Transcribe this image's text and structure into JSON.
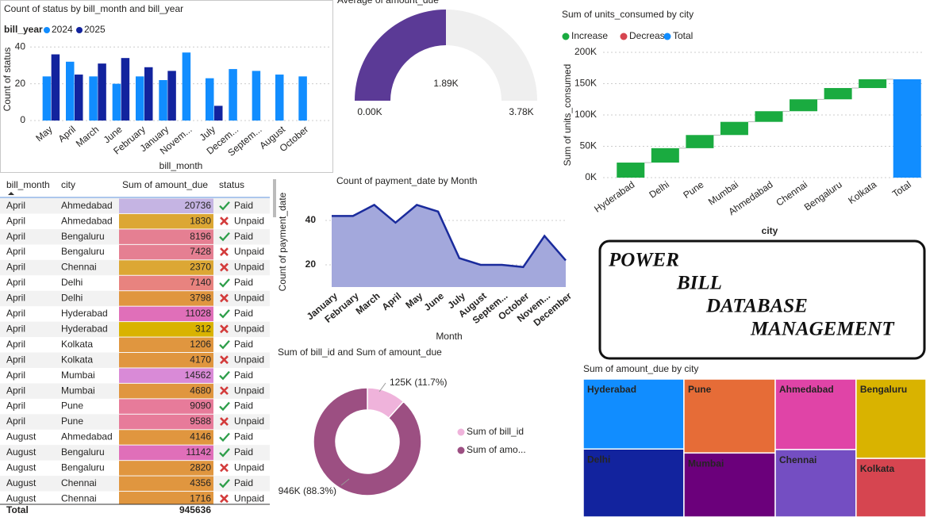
{
  "chart_data": [
    {
      "type": "bar",
      "title": "Count of status by bill_month and bill_year",
      "legend_title": "bill_year",
      "categories": [
        "May",
        "April",
        "March",
        "June",
        "February",
        "January",
        "Novem...",
        "July",
        "Decem...",
        "Septem...",
        "August",
        "October"
      ],
      "series": [
        {
          "name": "2024",
          "color": "#118dff",
          "values": [
            24,
            32,
            24,
            20,
            24,
            22,
            37,
            23,
            28,
            27,
            25,
            24
          ]
        },
        {
          "name": "2025",
          "color": "#12239e",
          "values": [
            36,
            25,
            31,
            34,
            29,
            27,
            null,
            8,
            null,
            null,
            null,
            null
          ]
        }
      ],
      "ylim": [
        0,
        44
      ],
      "yticks": [
        0,
        20,
        40
      ],
      "y_label": "Count of status",
      "x_label": "bill_month",
      "grid": true
    },
    {
      "type": "gauge",
      "title": "Average of amount_due",
      "values": [
        1890
      ],
      "value_labels": [
        "1.89K"
      ],
      "min": {
        "value": 0,
        "label": "0.00K"
      },
      "max": {
        "value": 3780,
        "label": "3.78K"
      },
      "color": "#5b3a96",
      "track_color": "#efefef"
    },
    {
      "type": "waterfall",
      "title": "Sum of units_consumed by city",
      "legend": [
        {
          "name": "Increase",
          "color": "#1aab40"
        },
        {
          "name": "Decrease",
          "color": "#d64550"
        },
        {
          "name": "Total",
          "color": "#118dff"
        }
      ],
      "categories": [
        "Hyderabad",
        "Delhi",
        "Pune",
        "Mumbai",
        "Ahmedabad",
        "Chennai",
        "Bengaluru",
        "Kolkata"
      ],
      "values": [
        24000,
        23000,
        21000,
        21000,
        17000,
        19000,
        18000,
        14000
      ],
      "total_label": "Total",
      "total": 157000,
      "ylim": [
        0,
        200000
      ],
      "yticks": [
        {
          "value": 0,
          "label": "0K"
        },
        {
          "value": 50000,
          "label": "50K"
        },
        {
          "value": 100000,
          "label": "100K"
        },
        {
          "value": 150000,
          "label": "150K"
        },
        {
          "value": 200000,
          "label": "200K"
        }
      ],
      "x_label": "city",
      "y_label": "Sum of units_consumed",
      "grid": true
    },
    {
      "type": "area",
      "title": "Count of payment_date by Month",
      "categories": [
        "January",
        "February",
        "March",
        "April",
        "May",
        "June",
        "July",
        "August",
        "Septem...",
        "October",
        "Novem...",
        "December"
      ],
      "values": [
        42,
        42,
        47,
        39,
        47,
        44,
        23,
        20,
        20,
        19,
        33,
        22
      ],
      "ylim": [
        10,
        50
      ],
      "yticks": [
        20,
        40
      ],
      "x_label": "Month",
      "y_label": "Count of payment_date",
      "color": "#a3a8dc",
      "line_color": "#1a2b9c",
      "grid": true
    },
    {
      "type": "donut",
      "title": "Sum of bill_id and Sum of amount_due",
      "categories": [
        "Sum of bill_id",
        "Sum of amo..."
      ],
      "values": [
        125000,
        946000
      ],
      "value_labels": [
        "125K (11.7%)",
        "946K (88.3%)"
      ],
      "colors": [
        "#efb3db",
        "#9c4f82"
      ]
    },
    {
      "type": "treemap",
      "title": "Sum of amount_due by city",
      "categories": [
        "Hyderabad",
        "Delhi",
        "Pune",
        "Mumbai",
        "Ahmedabad",
        "Chennai",
        "Bengaluru",
        "Kolkata"
      ],
      "values": [
        141000,
        137000,
        135000,
        117000,
        114000,
        109000,
        111000,
        82000
      ],
      "colors": [
        "#118dff",
        "#12239e",
        "#e66c37",
        "#6b007b",
        "#e044a7",
        "#744ec2",
        "#d9b300",
        "#d64550"
      ]
    }
  ],
  "table": {
    "columns": [
      "bill_month",
      "city",
      "Sum of amount_due",
      "status"
    ],
    "rows": [
      [
        "April",
        "Ahmedabad",
        20736,
        "Paid"
      ],
      [
        "April",
        "Ahmedabad",
        1830,
        "Unpaid"
      ],
      [
        "April",
        "Bengaluru",
        8196,
        "Paid"
      ],
      [
        "April",
        "Bengaluru",
        7428,
        "Unpaid"
      ],
      [
        "April",
        "Chennai",
        2370,
        "Unpaid"
      ],
      [
        "April",
        "Delhi",
        7140,
        "Paid"
      ],
      [
        "April",
        "Delhi",
        3798,
        "Unpaid"
      ],
      [
        "April",
        "Hyderabad",
        11028,
        "Paid"
      ],
      [
        "April",
        "Hyderabad",
        312,
        "Unpaid"
      ],
      [
        "April",
        "Kolkata",
        1206,
        "Paid"
      ],
      [
        "April",
        "Kolkata",
        4170,
        "Unpaid"
      ],
      [
        "April",
        "Mumbai",
        14562,
        "Paid"
      ],
      [
        "April",
        "Mumbai",
        4680,
        "Unpaid"
      ],
      [
        "April",
        "Pune",
        9090,
        "Paid"
      ],
      [
        "April",
        "Pune",
        9588,
        "Unpaid"
      ],
      [
        "August",
        "Ahmedabad",
        4146,
        "Paid"
      ],
      [
        "August",
        "Bengaluru",
        11142,
        "Paid"
      ],
      [
        "August",
        "Bengaluru",
        2820,
        "Unpaid"
      ],
      [
        "August",
        "Chennai",
        4356,
        "Paid"
      ],
      [
        "August",
        "Chennai",
        1716,
        "Unpaid"
      ]
    ],
    "status_icons": [
      "check",
      "cross",
      "check",
      "cross",
      "cross",
      "check",
      "cross",
      "check",
      "cross",
      "check",
      "cross",
      "check",
      "cross",
      "check",
      "cross",
      "check",
      "check",
      "cross",
      "check",
      "cross"
    ],
    "amount_colors": [
      "#c5b4e3",
      "#dca734",
      "#e57f92",
      "#e57f92",
      "#dca734",
      "#e8837f",
      "#e0963f",
      "#e06fb9",
      "#d9b300",
      "#e0963f",
      "#e0963f",
      "#d98ad7",
      "#e0963f",
      "#e77b9a",
      "#e77b9a",
      "#e0963f",
      "#e06fb9",
      "#e0963f",
      "#e0963f",
      "#e0963f"
    ],
    "city_colors": [
      "#9a2b2b",
      "#9a2b2b",
      "#5b4aa8",
      "#5b4aa8",
      "#e0742d",
      "#555555",
      "#555555",
      "#333333",
      "#333333",
      "#6b0f6b",
      "#6b0f6b",
      "#6c6cc9",
      "#6c6cc9",
      "#333333",
      "#333333",
      "#9a2b2b",
      "#5b4aa8",
      "#5b4aa8",
      "#e0742d",
      "#e0742d"
    ],
    "total_label": "Total",
    "total": 945636
  },
  "text_box": {
    "lines": [
      "POWER",
      "BILL",
      "DATABASE",
      "MANAGEMENT"
    ]
  }
}
